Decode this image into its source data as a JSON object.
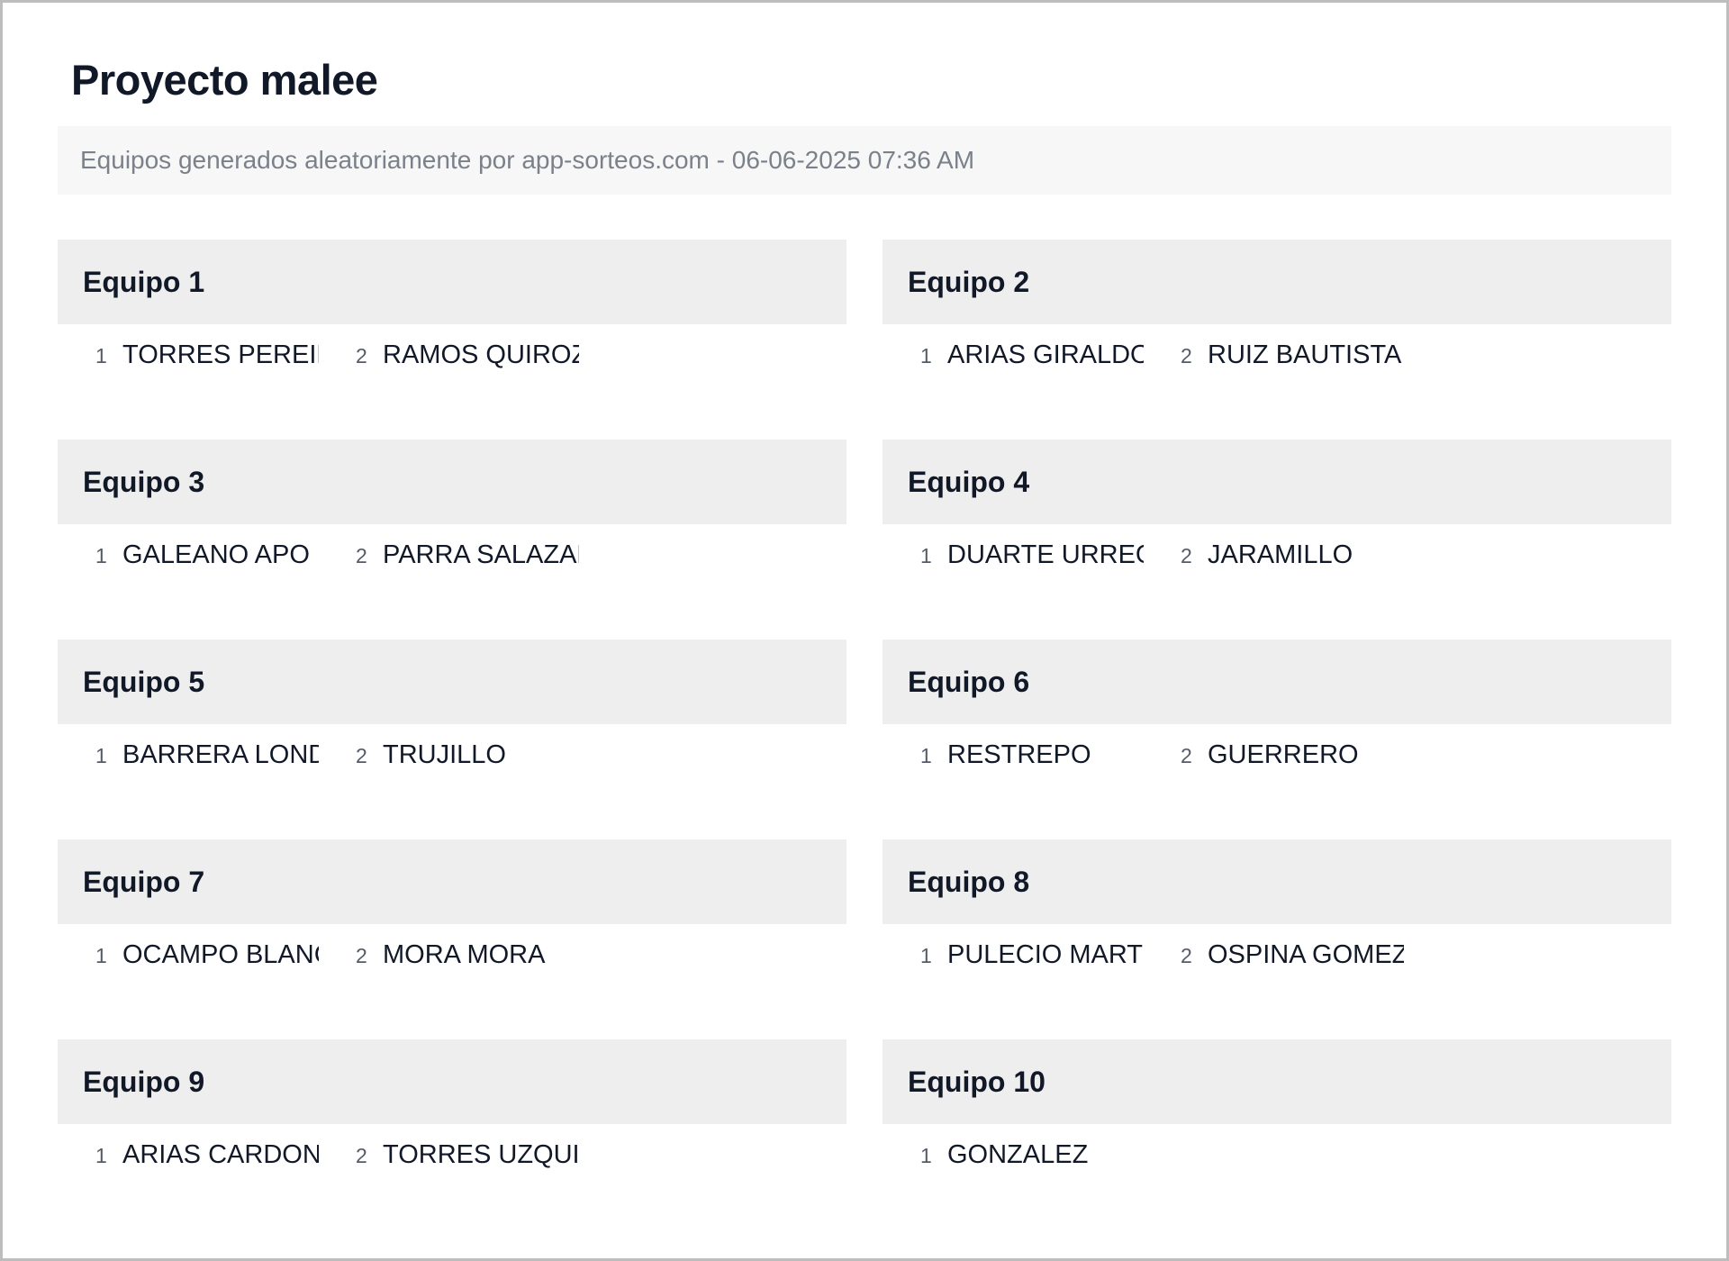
{
  "title": "Proyecto malee",
  "subtitle": "Equipos generados aleatoriamente por app-sorteos.com - 06-06-2025 07:36 AM",
  "teams": [
    {
      "name": "Equipo 1",
      "members": [
        {
          "n": "1",
          "name": "TORRES PEREIRA"
        },
        {
          "n": "2",
          "name": "RAMOS QUIROZ"
        }
      ]
    },
    {
      "name": "Equipo 2",
      "members": [
        {
          "n": "1",
          "name": "ARIAS GIRALDO"
        },
        {
          "n": "2",
          "name": "RUIZ BAUTISTA"
        }
      ]
    },
    {
      "name": "Equipo 3",
      "members": [
        {
          "n": "1",
          "name": "GALEANO APO"
        },
        {
          "n": "2",
          "name": "PARRA SALAZAR"
        }
      ]
    },
    {
      "name": "Equipo 4",
      "members": [
        {
          "n": "1",
          "name": "DUARTE URREGO"
        },
        {
          "n": "2",
          "name": "JARAMILLO"
        }
      ]
    },
    {
      "name": "Equipo 5",
      "members": [
        {
          "n": "1",
          "name": "BARRERA LONDOÑO"
        },
        {
          "n": "2",
          "name": "TRUJILLO"
        }
      ]
    },
    {
      "name": "Equipo 6",
      "members": [
        {
          "n": "1",
          "name": "RESTREPO"
        },
        {
          "n": "2",
          "name": "GUERRERO"
        }
      ]
    },
    {
      "name": "Equipo 7",
      "members": [
        {
          "n": "1",
          "name": "OCAMPO BLANCO"
        },
        {
          "n": "2",
          "name": "MORA MORA"
        }
      ]
    },
    {
      "name": "Equipo 8",
      "members": [
        {
          "n": "1",
          "name": "PULECIO MARTINEZ"
        },
        {
          "n": "2",
          "name": "OSPINA GOMEZ"
        }
      ]
    },
    {
      "name": "Equipo 9",
      "members": [
        {
          "n": "1",
          "name": "ARIAS CARDONA"
        },
        {
          "n": "2",
          "name": "TORRES UZQUI"
        }
      ]
    },
    {
      "name": "Equipo 10",
      "members": [
        {
          "n": "1",
          "name": "GONZALEZ"
        }
      ]
    }
  ]
}
